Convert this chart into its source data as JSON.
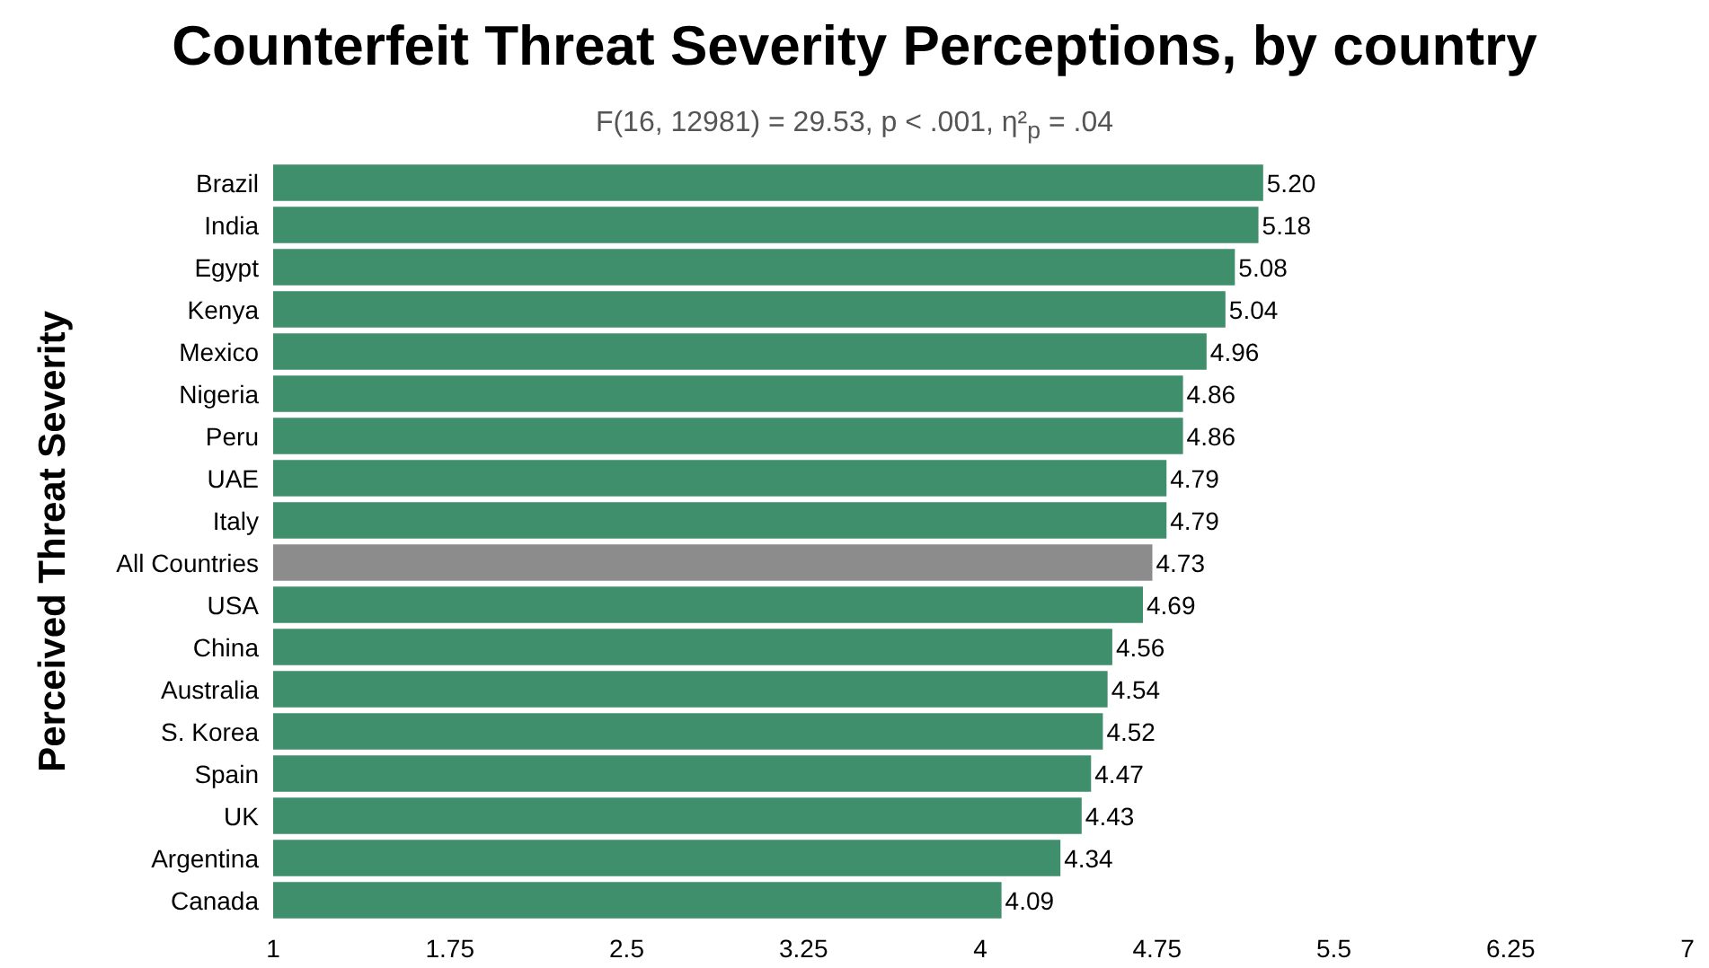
{
  "chart_data": {
    "type": "bar",
    "orientation": "horizontal",
    "title": "Counterfeit Threat Severity Perceptions, by country",
    "subtitle": "F(16, 12981) = 29.53, p < .001, η²$_{p}$ = .04",
    "ylabel": "Perceived Threat Severity",
    "categories": [
      "Brazil",
      "India",
      "Egypt",
      "Kenya",
      "Mexico",
      "Nigeria",
      "Peru",
      "UAE",
      "Italy",
      "All Countries",
      "USA",
      "China",
      "Australia",
      "S. Korea",
      "Spain",
      "UK",
      "Argentina",
      "Canada"
    ],
    "values": [
      5.2,
      5.18,
      5.08,
      5.04,
      4.96,
      4.86,
      4.86,
      4.79,
      4.79,
      4.73,
      4.69,
      4.56,
      4.54,
      4.52,
      4.47,
      4.43,
      4.34,
      4.09
    ],
    "colors": [
      "#3f8f6c",
      "#3f8f6c",
      "#3f8f6c",
      "#3f8f6c",
      "#3f8f6c",
      "#3f8f6c",
      "#3f8f6c",
      "#3f8f6c",
      "#3f8f6c",
      "#8c8c8c",
      "#3f8f6c",
      "#3f8f6c",
      "#3f8f6c",
      "#3f8f6c",
      "#3f8f6c",
      "#3f8f6c",
      "#3f8f6c",
      "#3f8f6c"
    ],
    "value_labels": [
      "5.20",
      "5.18",
      "5.08",
      "5.04",
      "4.96",
      "4.86",
      "4.86",
      "4.79",
      "4.79",
      "4.73",
      "4.69",
      "4.56",
      "4.54",
      "4.52",
      "4.47",
      "4.43",
      "4.34",
      "4.09"
    ],
    "xlim": [
      1,
      7
    ],
    "xticks": [
      1,
      1.75,
      2.5,
      3.25,
      4,
      4.75,
      5.5,
      6.25,
      7
    ],
    "grid": false
  }
}
